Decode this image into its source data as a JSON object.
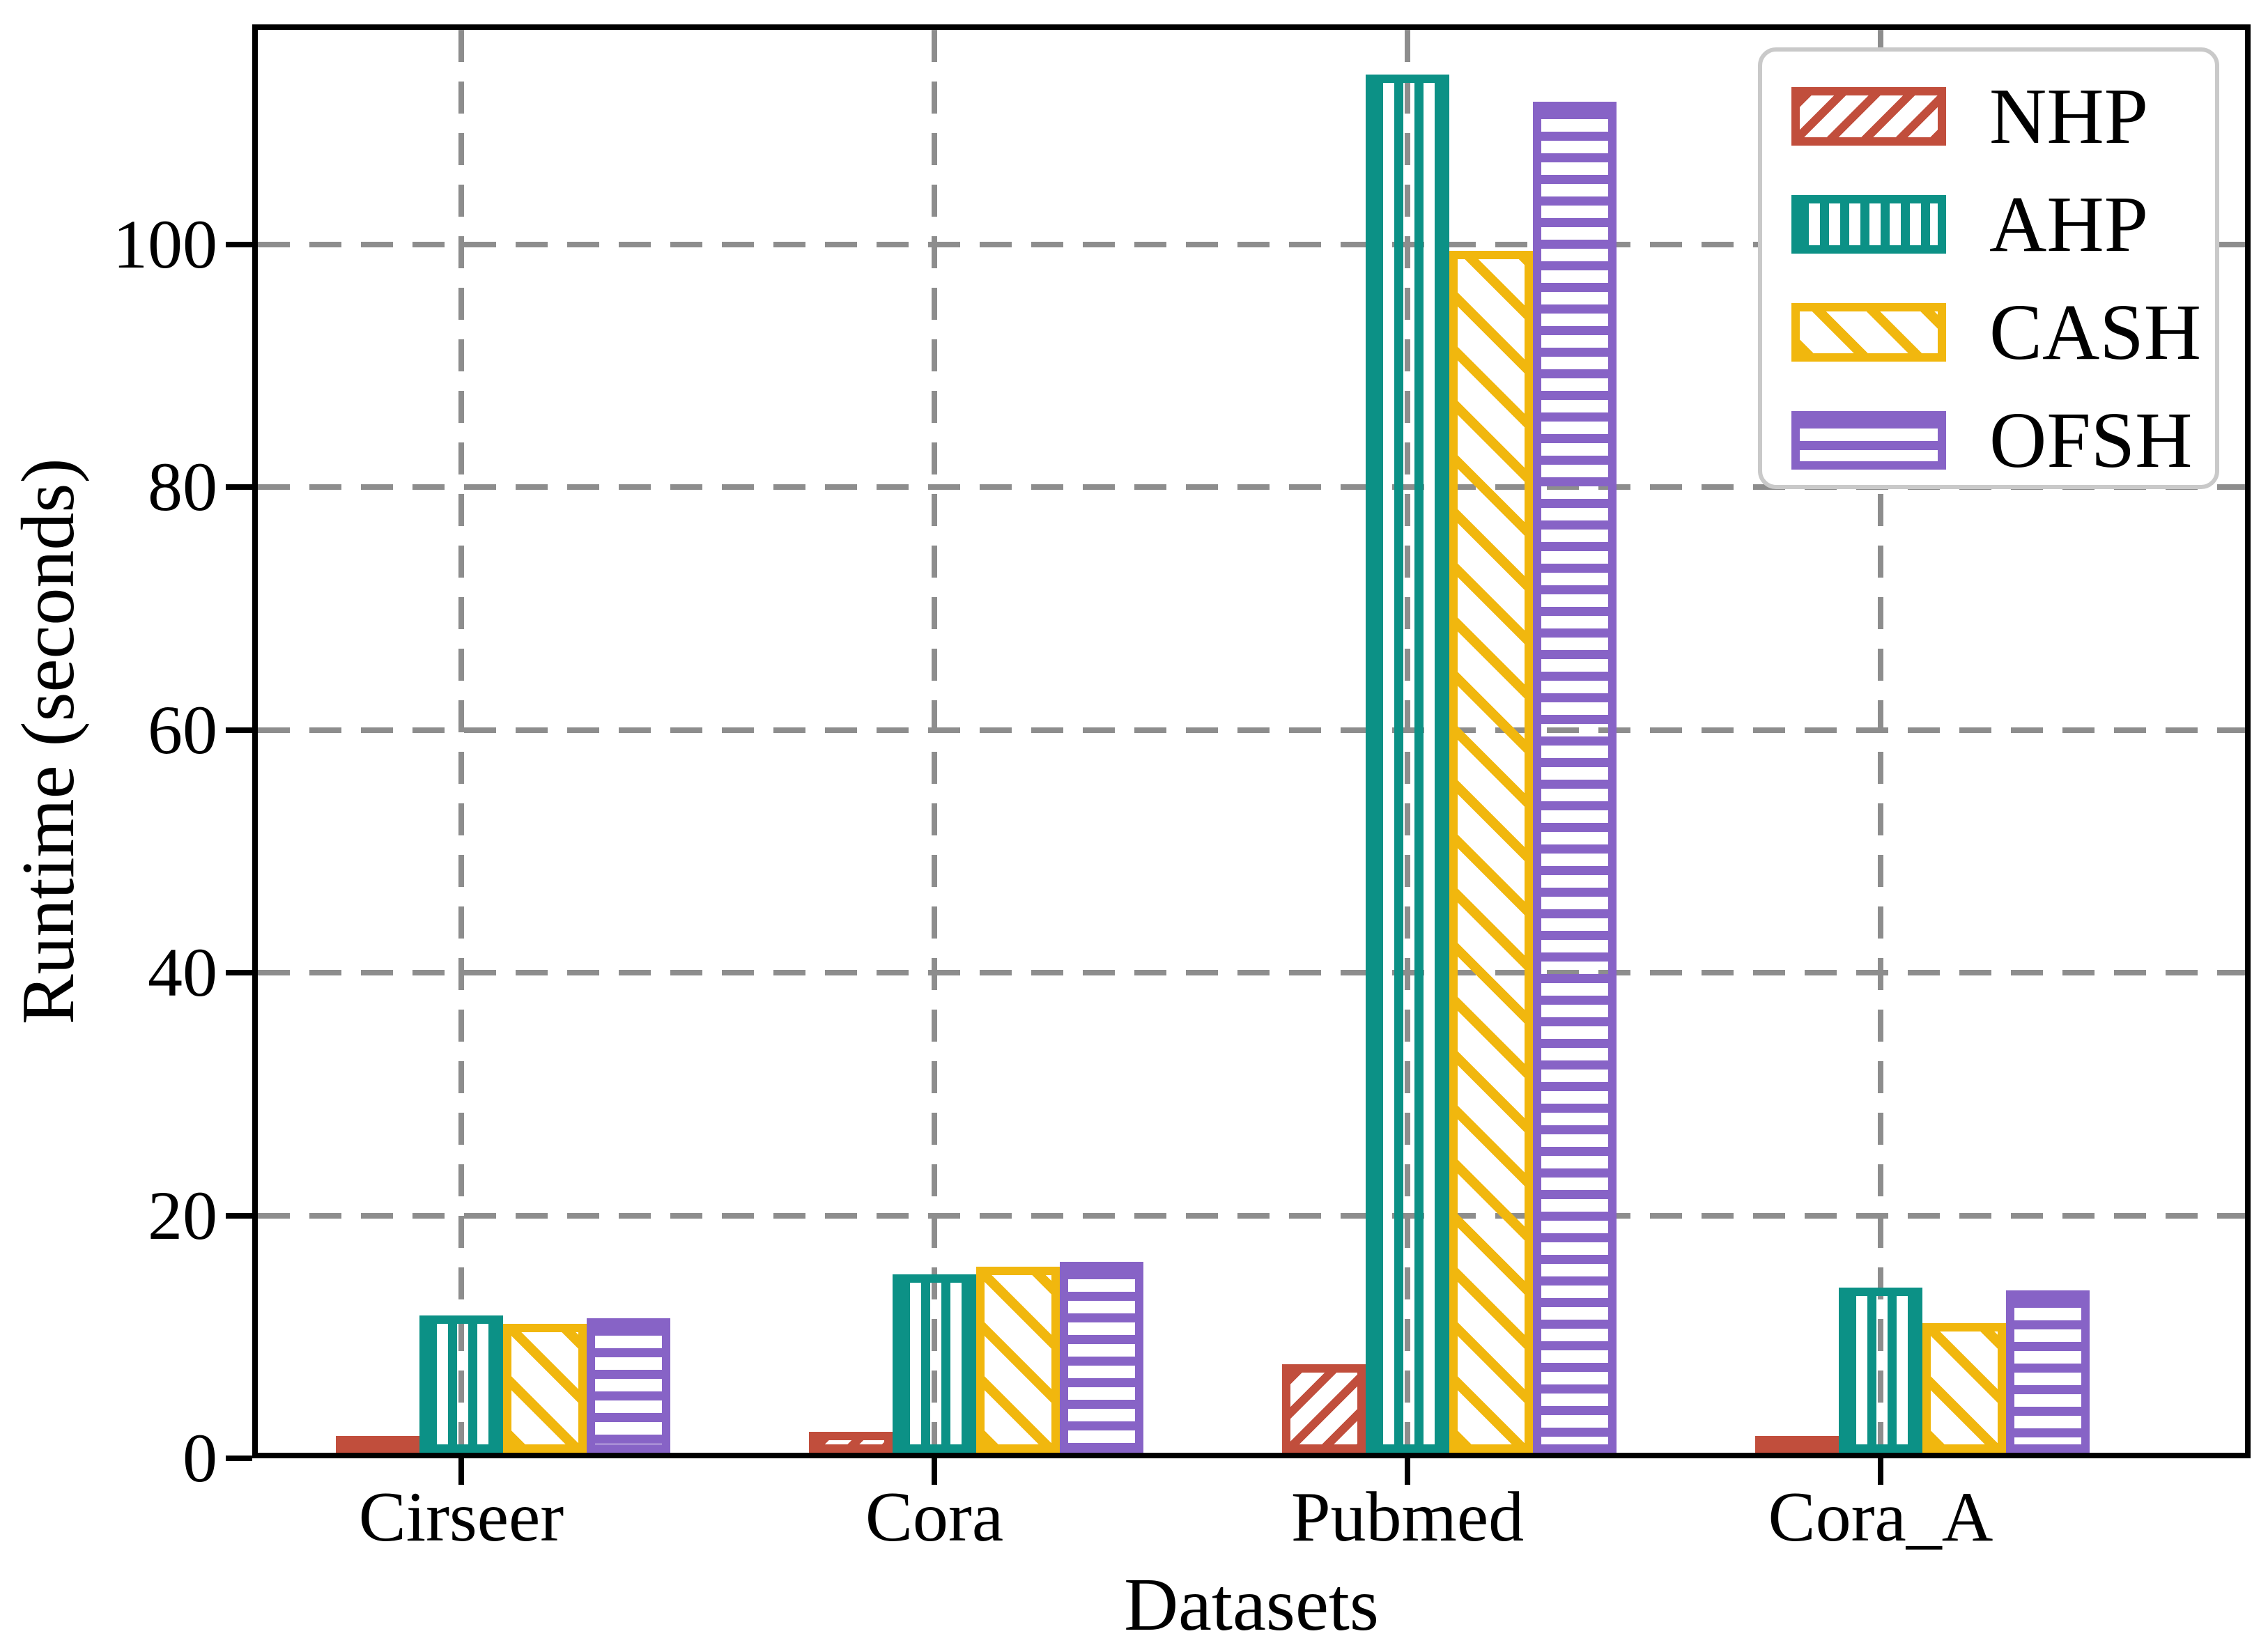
{
  "chart_data": {
    "type": "bar",
    "title": "",
    "xlabel": "Datasets",
    "ylabel": "Runtime (seconds)",
    "categories": [
      "Cirseer",
      "Cora",
      "Pubmed",
      "Cora_A"
    ],
    "series": [
      {
        "name": "NHP",
        "color": "#C14E3C",
        "hatch": "/",
        "values": [
          1.1,
          1.7,
          7.3,
          1.1
        ]
      },
      {
        "name": "AHP",
        "color": "#0C9186",
        "hatch": "|",
        "values": [
          11.3,
          14.7,
          113.5,
          13.6
        ]
      },
      {
        "name": "CASH",
        "color": "#F1B70E",
        "hatch": "\\",
        "values": [
          10.6,
          15.3,
          99.0,
          10.7
        ]
      },
      {
        "name": "OFSH",
        "color": "#8763C6",
        "hatch": "-",
        "values": [
          11.1,
          15.7,
          111.3,
          13.4
        ]
      }
    ],
    "yticks": [
      0,
      20,
      40,
      60,
      80,
      100
    ],
    "ylim": [
      0,
      118
    ],
    "grid": "dashed",
    "grid_color": "#8d8d8d",
    "axis_color": "#000000",
    "legend_position": "upper right",
    "legend_border_color": "#c9c9c9"
  }
}
